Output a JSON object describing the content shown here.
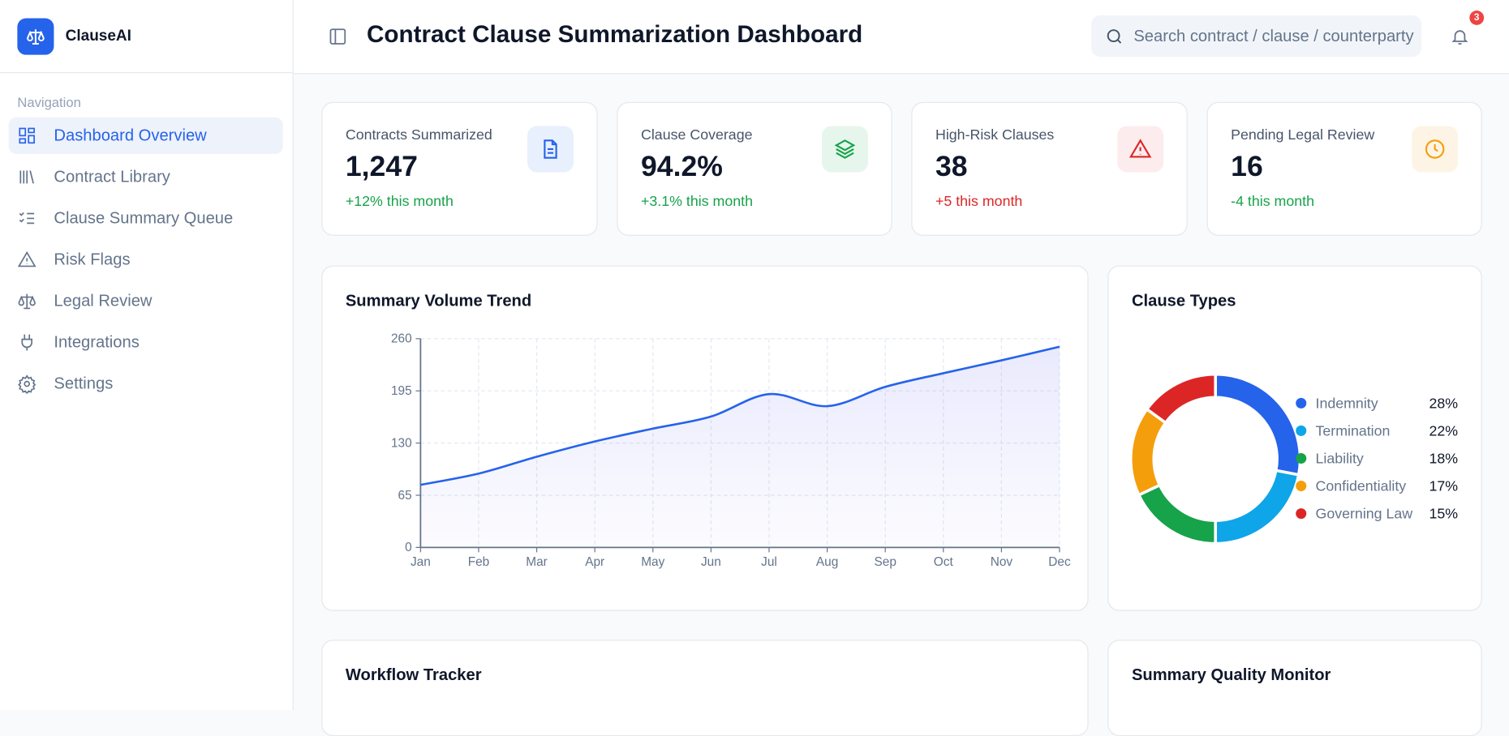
{
  "sidebar": {
    "brand": "ClauseAI",
    "section": "Navigation",
    "items": [
      "Dashboard Overview",
      "Contract Library",
      "Clause Summary Queue",
      "Risk Flags",
      "Legal Review",
      "Integrations",
      "Settings"
    ]
  },
  "header": {
    "title": "Contract Clause Summarization Dashboard",
    "search_placeholder": "Search contract / clause / counterparty",
    "notifications": "3"
  },
  "kpis": [
    {
      "label": "Contracts Summarized",
      "value": "1,247",
      "delta": "+12% this month"
    },
    {
      "label": "Clause Coverage",
      "value": "94.2%",
      "delta": "+3.1% this month"
    },
    {
      "label": "High-Risk Clauses",
      "value": "38",
      "delta": "+5 this month"
    },
    {
      "label": "Pending Legal Review",
      "value": "16",
      "delta": "-4 this month"
    }
  ],
  "chart_data": [
    {
      "type": "line",
      "title": "Summary Volume Trend",
      "categories": [
        "Jan",
        "Feb",
        "Mar",
        "Apr",
        "May",
        "Jun",
        "Jul",
        "Aug",
        "Sep",
        "Oct",
        "Nov",
        "Dec"
      ],
      "values": [
        78,
        92,
        113,
        132,
        148,
        163,
        191,
        176,
        200,
        217,
        233,
        250
      ],
      "color": "#2563eb",
      "ylim": [
        0,
        260
      ],
      "yticks": [
        0,
        65,
        130,
        195,
        260
      ],
      "grid": true
    },
    {
      "type": "pie",
      "title": "Clause Types",
      "categories": [
        "Indemnity",
        "Termination",
        "Liability",
        "Confidentiality",
        "Governing Law"
      ],
      "values": [
        28,
        22,
        18,
        17,
        15
      ],
      "value_labels": [
        "28%",
        "22%",
        "18%",
        "17%",
        "15%"
      ],
      "colors": [
        "#2563eb",
        "#0ea5e9",
        "#16a34a",
        "#f59e0b",
        "#dc2626"
      ]
    }
  ],
  "panels": [
    "Workflow Tracker",
    "Summary Quality Monitor"
  ]
}
